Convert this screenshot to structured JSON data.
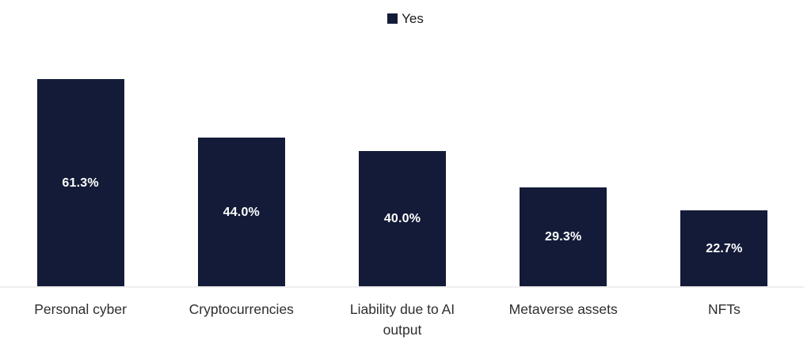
{
  "chart_data": {
    "type": "bar",
    "title": "",
    "categories": [
      "Personal cyber",
      "Cryptocurrencies",
      "Liability due to AI output",
      "Metaverse assets",
      "NFTs"
    ],
    "series": [
      {
        "name": "Yes",
        "values": [
          61.3,
          44.0,
          40.0,
          29.3,
          22.7
        ]
      }
    ],
    "value_labels": [
      "61.3%",
      "44.0%",
      "40.0%",
      "29.3%",
      "22.7%"
    ],
    "ylim": [
      0,
      70
    ],
    "y_axis_visible": false,
    "grid": false,
    "legend_position": "top-center",
    "bar_color": "#131b38",
    "value_label_color": "#ffffff",
    "category_label_color": "#2e2e2e",
    "axis_line_color": "#efefef"
  },
  "legend": {
    "items": [
      {
        "label": "Yes",
        "swatch_color": "#131b38"
      }
    ]
  }
}
